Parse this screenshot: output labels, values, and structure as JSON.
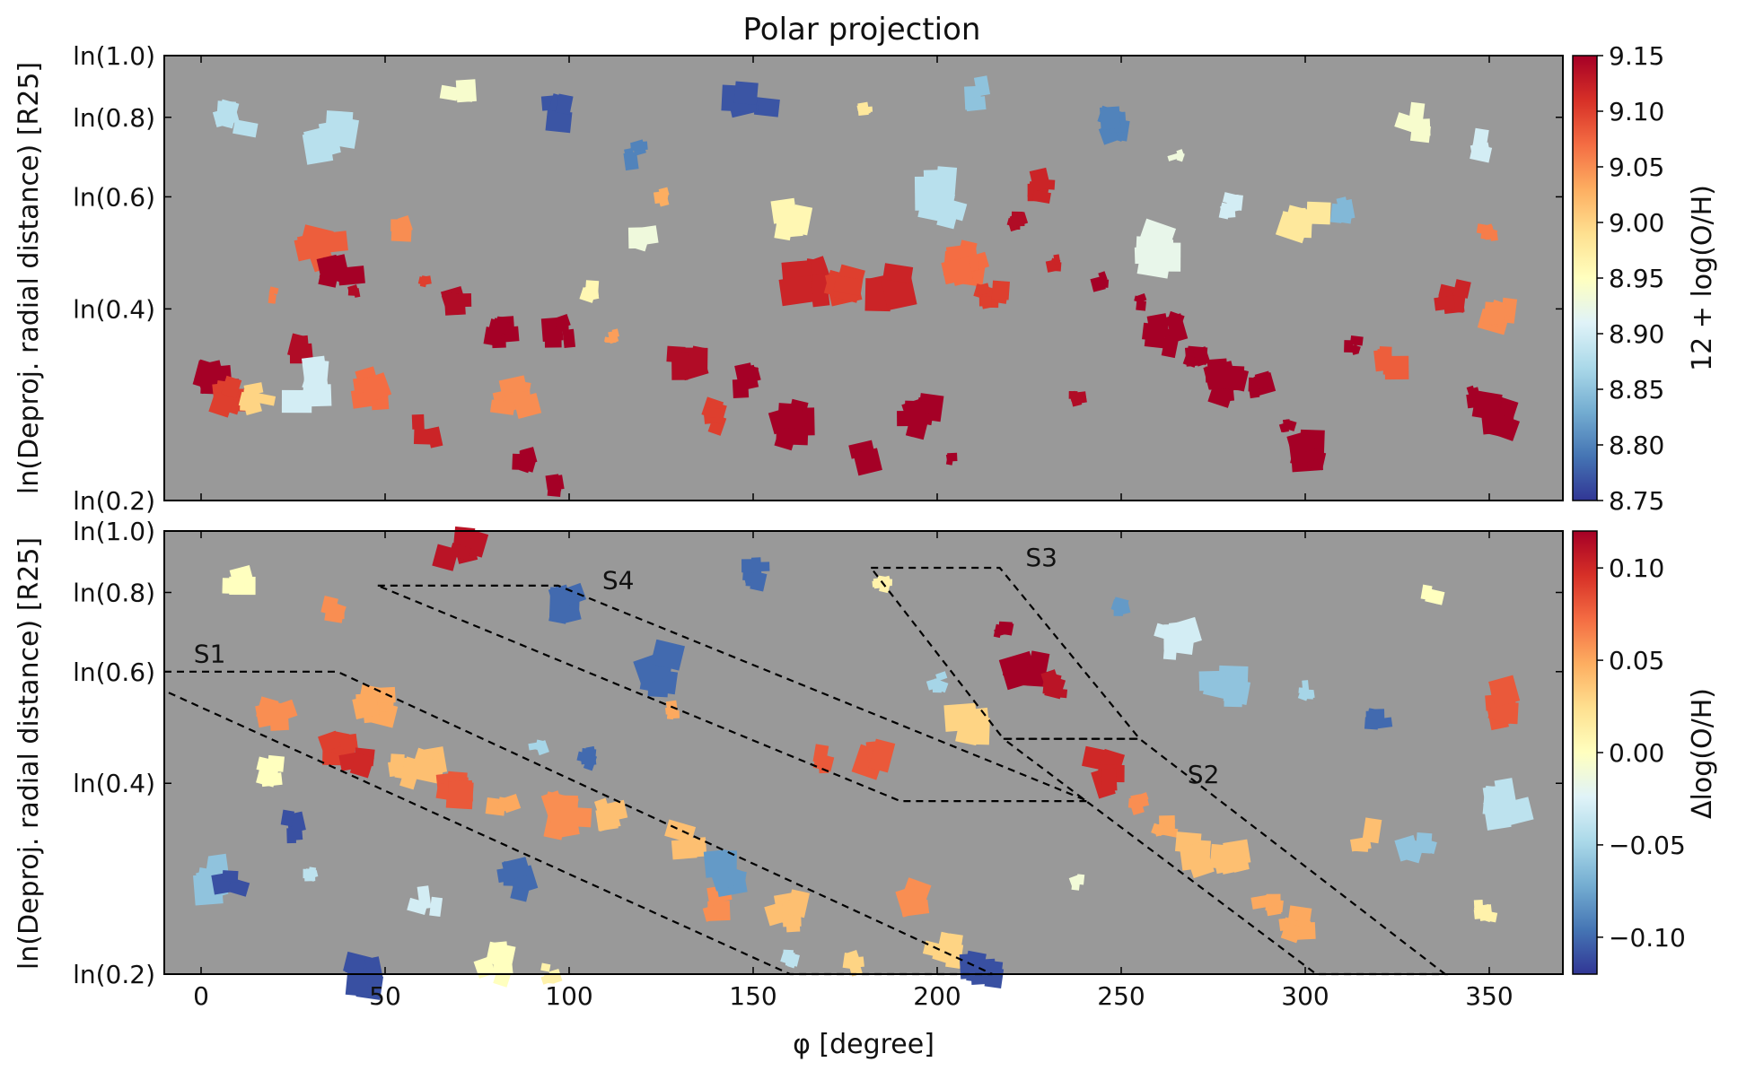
{
  "chart_data": [
    {
      "type": "scatter",
      "title": "Polar projection",
      "xlabel": "",
      "ylabel": "ln(Deproj. radial distance) [R25]",
      "xlim": [
        -10,
        370
      ],
      "ylim_radius": [
        0.2,
        1.0
      ],
      "y_ticks": [
        "ln(1.0)",
        "ln(0.8)",
        "ln(0.6)",
        "ln(0.4)",
        "ln(0.2)"
      ],
      "y_tick_values": [
        1.0,
        0.8,
        0.6,
        0.4,
        0.2
      ],
      "background_color": "#999999",
      "colorbar": {
        "label": "12 + log(O/H)",
        "min": 8.75,
        "max": 9.15,
        "ticks": [
          "9.15",
          "9.10",
          "9.05",
          "9.00",
          "8.95",
          "8.90",
          "8.85",
          "8.80",
          "8.75"
        ],
        "tick_values": [
          9.15,
          9.1,
          9.05,
          9.0,
          8.95,
          8.9,
          8.85,
          8.8,
          8.75
        ],
        "colors": [
          "#313695",
          "#4575b4",
          "#74add1",
          "#abd9e9",
          "#e0f3f8",
          "#ffffbf",
          "#fee090",
          "#fdae61",
          "#f46d43",
          "#d73027",
          "#a50026"
        ]
      },
      "points": [
        {
          "phi": 3,
          "r": 0.3,
          "v": 9.15
        },
        {
          "phi": 8,
          "r": 0.29,
          "v": 9.1
        },
        {
          "phi": 15,
          "r": 0.29,
          "v": 9.0
        },
        {
          "phi": 20,
          "r": 0.42,
          "v": 9.06
        },
        {
          "phi": 25,
          "r": 0.35,
          "v": 9.14
        },
        {
          "phi": 30,
          "r": 0.3,
          "v": 8.9
        },
        {
          "phi": 33,
          "r": 0.51,
          "v": 9.08
        },
        {
          "phi": 38,
          "r": 0.46,
          "v": 9.15
        },
        {
          "phi": 42,
          "r": 0.43,
          "v": 9.14
        },
        {
          "phi": 47,
          "r": 0.3,
          "v": 9.07
        },
        {
          "phi": 55,
          "r": 0.54,
          "v": 9.05
        },
        {
          "phi": 60,
          "r": 0.45,
          "v": 9.1
        },
        {
          "phi": 62,
          "r": 0.26,
          "v": 9.12
        },
        {
          "phi": 70,
          "r": 0.41,
          "v": 9.14
        },
        {
          "phi": 82,
          "r": 0.37,
          "v": 9.15
        },
        {
          "phi": 85,
          "r": 0.29,
          "v": 9.05
        },
        {
          "phi": 88,
          "r": 0.23,
          "v": 9.15
        },
        {
          "phi": 95,
          "r": 0.21,
          "v": 9.15
        },
        {
          "phi": 98,
          "r": 0.37,
          "v": 9.15
        },
        {
          "phi": 105,
          "r": 0.43,
          "v": 8.96
        },
        {
          "phi": 112,
          "r": 0.36,
          "v": 9.04
        },
        {
          "phi": 118,
          "r": 0.7,
          "v": 8.8
        },
        {
          "phi": 125,
          "r": 0.6,
          "v": 9.03
        },
        {
          "phi": 132,
          "r": 0.33,
          "v": 9.14
        },
        {
          "phi": 140,
          "r": 0.27,
          "v": 9.1
        },
        {
          "phi": 148,
          "r": 0.31,
          "v": 9.15
        },
        {
          "phi": 160,
          "r": 0.26,
          "v": 9.15
        },
        {
          "phi": 165,
          "r": 0.44,
          "v": 9.12
        },
        {
          "phi": 172,
          "r": 0.44,
          "v": 9.1
        },
        {
          "phi": 178,
          "r": 0.23,
          "v": 9.15
        },
        {
          "phi": 185,
          "r": 0.44,
          "v": 9.12
        },
        {
          "phi": 195,
          "r": 0.27,
          "v": 9.15
        },
        {
          "phi": 203,
          "r": 0.23,
          "v": 9.15
        },
        {
          "phi": 208,
          "r": 0.48,
          "v": 9.07
        },
        {
          "phi": 215,
          "r": 0.42,
          "v": 9.1
        },
        {
          "phi": 222,
          "r": 0.55,
          "v": 9.14
        },
        {
          "phi": 228,
          "r": 0.62,
          "v": 9.12
        },
        {
          "phi": 232,
          "r": 0.47,
          "v": 9.12
        },
        {
          "phi": 238,
          "r": 0.29,
          "v": 9.14
        },
        {
          "phi": 245,
          "r": 0.44,
          "v": 9.15
        },
        {
          "phi": 255,
          "r": 0.41,
          "v": 9.15
        },
        {
          "phi": 262,
          "r": 0.37,
          "v": 9.15
        },
        {
          "phi": 270,
          "r": 0.34,
          "v": 9.15
        },
        {
          "phi": 280,
          "r": 0.31,
          "v": 9.15
        },
        {
          "phi": 288,
          "r": 0.3,
          "v": 9.15
        },
        {
          "phi": 295,
          "r": 0.26,
          "v": 9.15
        },
        {
          "phi": 300,
          "r": 0.24,
          "v": 9.15
        },
        {
          "phi": 313,
          "r": 0.35,
          "v": 9.15
        },
        {
          "phi": 322,
          "r": 0.33,
          "v": 9.08
        },
        {
          "phi": 345,
          "r": 0.29,
          "v": 9.15
        },
        {
          "phi": 352,
          "r": 0.27,
          "v": 9.15
        },
        {
          "phi": 355,
          "r": 0.39,
          "v": 9.05
        },
        {
          "phi": 350,
          "r": 0.53,
          "v": 9.06
        },
        {
          "phi": 340,
          "r": 0.42,
          "v": 9.12
        },
        {
          "phi": 10,
          "r": 0.8,
          "v": 8.88
        },
        {
          "phi": 35,
          "r": 0.76,
          "v": 8.88
        },
        {
          "phi": 70,
          "r": 0.85,
          "v": 8.94
        },
        {
          "phi": 95,
          "r": 0.82,
          "v": 8.77
        },
        {
          "phi": 150,
          "r": 0.86,
          "v": 8.77
        },
        {
          "phi": 180,
          "r": 0.82,
          "v": 8.98
        },
        {
          "phi": 210,
          "r": 0.86,
          "v": 8.85
        },
        {
          "phi": 248,
          "r": 0.78,
          "v": 8.8
        },
        {
          "phi": 265,
          "r": 0.7,
          "v": 8.93
        },
        {
          "phi": 280,
          "r": 0.58,
          "v": 8.9
        },
        {
          "phi": 310,
          "r": 0.58,
          "v": 8.84
        },
        {
          "phi": 330,
          "r": 0.78,
          "v": 8.94
        },
        {
          "phi": 350,
          "r": 0.72,
          "v": 8.9
        },
        {
          "phi": 120,
          "r": 0.52,
          "v": 8.93
        },
        {
          "phi": 160,
          "r": 0.55,
          "v": 8.96
        },
        {
          "phi": 200,
          "r": 0.6,
          "v": 8.88
        },
        {
          "phi": 260,
          "r": 0.5,
          "v": 8.92
        },
        {
          "phi": 300,
          "r": 0.55,
          "v": 8.98
        }
      ]
    },
    {
      "type": "scatter",
      "title": "",
      "xlabel": "φ [degree]",
      "ylabel": "ln(Deproj. radial distance) [R25]",
      "xlim": [
        -10,
        370
      ],
      "x_ticks": [
        "0",
        "50",
        "100",
        "150",
        "200",
        "250",
        "300",
        "350"
      ],
      "x_tick_values": [
        0,
        50,
        100,
        150,
        200,
        250,
        300,
        350
      ],
      "ylim_radius": [
        0.2,
        1.0
      ],
      "y_ticks": [
        "ln(1.0)",
        "ln(0.8)",
        "ln(0.6)",
        "ln(0.4)",
        "ln(0.2)"
      ],
      "y_tick_values": [
        1.0,
        0.8,
        0.6,
        0.4,
        0.2
      ],
      "background_color": "#999999",
      "colorbar": {
        "label": "Δlog(O/H)",
        "min": -0.12,
        "max": 0.12,
        "ticks": [
          "0.10",
          "0.05",
          "0.00",
          "−0.05",
          "−0.10"
        ],
        "tick_values": [
          0.1,
          0.05,
          0.0,
          -0.05,
          -0.1
        ],
        "colors": [
          "#313695",
          "#4575b4",
          "#74add1",
          "#abd9e9",
          "#e0f3f8",
          "#ffffbf",
          "#fee090",
          "#fdae61",
          "#f46d43",
          "#d73027",
          "#a50026"
        ]
      },
      "spiral_arms": [
        {
          "label": "S1",
          "label_phi": -2,
          "label_r": 0.62,
          "path": [
            [
              -10,
              0.6
            ],
            [
              37,
              0.6
            ],
            [
              215,
              0.2
            ],
            [
              160,
              0.2
            ],
            [
              -10,
              0.56
            ]
          ]
        },
        {
          "label": "S2",
          "label_phi": 268,
          "label_r": 0.4,
          "path": [
            [
              218,
              0.47
            ],
            [
              255,
              0.47
            ],
            [
              338,
              0.2
            ],
            [
              303,
              0.2
            ],
            [
              218,
              0.47
            ]
          ]
        },
        {
          "label": "S3",
          "label_phi": 224,
          "label_r": 0.88,
          "path": [
            [
              182,
              0.875
            ],
            [
              217,
              0.875
            ],
            [
              255,
              0.47
            ],
            [
              218,
              0.47
            ],
            [
              182,
              0.875
            ]
          ]
        },
        {
          "label": "S4",
          "label_phi": 109,
          "label_r": 0.81,
          "path": [
            [
              48,
              0.82
            ],
            [
              97,
              0.82
            ],
            [
              241,
              0.375
            ],
            [
              190,
              0.375
            ],
            [
              48,
              0.82
            ]
          ]
        }
      ],
      "points": [
        {
          "phi": 3,
          "r": 0.28,
          "v": -0.06
        },
        {
          "phi": 8,
          "r": 0.28,
          "v": -0.11
        },
        {
          "phi": 18,
          "r": 0.42,
          "v": 0.0
        },
        {
          "phi": 20,
          "r": 0.52,
          "v": 0.06
        },
        {
          "phi": 25,
          "r": 0.34,
          "v": -0.11
        },
        {
          "phi": 30,
          "r": 0.29,
          "v": -0.04
        },
        {
          "phi": 38,
          "r": 0.46,
          "v": 0.09
        },
        {
          "phi": 42,
          "r": 0.43,
          "v": 0.1
        },
        {
          "phi": 44,
          "r": 0.2,
          "v": -0.11
        },
        {
          "phi": 48,
          "r": 0.53,
          "v": 0.05
        },
        {
          "phi": 55,
          "r": 0.42,
          "v": 0.04
        },
        {
          "phi": 60,
          "r": 0.44,
          "v": 0.04
        },
        {
          "phi": 62,
          "r": 0.26,
          "v": -0.03
        },
        {
          "phi": 68,
          "r": 0.4,
          "v": 0.08
        },
        {
          "phi": 80,
          "r": 0.21,
          "v": 0.0
        },
        {
          "phi": 82,
          "r": 0.37,
          "v": 0.05
        },
        {
          "phi": 85,
          "r": 0.28,
          "v": -0.1
        },
        {
          "phi": 92,
          "r": 0.45,
          "v": -0.05
        },
        {
          "phi": 95,
          "r": 0.2,
          "v": 0.01
        },
        {
          "phi": 100,
          "r": 0.36,
          "v": 0.06
        },
        {
          "phi": 105,
          "r": 0.44,
          "v": -0.1
        },
        {
          "phi": 112,
          "r": 0.36,
          "v": 0.04
        },
        {
          "phi": 125,
          "r": 0.61,
          "v": -0.1
        },
        {
          "phi": 128,
          "r": 0.52,
          "v": 0.05
        },
        {
          "phi": 133,
          "r": 0.33,
          "v": 0.04
        },
        {
          "phi": 140,
          "r": 0.26,
          "v": 0.06
        },
        {
          "phi": 144,
          "r": 0.29,
          "v": -0.08
        },
        {
          "phi": 160,
          "r": 0.25,
          "v": 0.04
        },
        {
          "phi": 160,
          "r": 0.21,
          "v": -0.04
        },
        {
          "phi": 168,
          "r": 0.44,
          "v": 0.08
        },
        {
          "phi": 178,
          "r": 0.21,
          "v": 0.03
        },
        {
          "phi": 182,
          "r": 0.44,
          "v": 0.08
        },
        {
          "phi": 195,
          "r": 0.26,
          "v": 0.06
        },
        {
          "phi": 202,
          "r": 0.22,
          "v": 0.03
        },
        {
          "phi": 213,
          "r": 0.2,
          "v": -0.11
        },
        {
          "phi": 218,
          "r": 0.7,
          "v": 0.12
        },
        {
          "phi": 225,
          "r": 0.62,
          "v": 0.12
        },
        {
          "phi": 232,
          "r": 0.57,
          "v": 0.11
        },
        {
          "phi": 238,
          "r": 0.28,
          "v": -0.01
        },
        {
          "phi": 245,
          "r": 0.42,
          "v": 0.1
        },
        {
          "phi": 255,
          "r": 0.37,
          "v": 0.06
        },
        {
          "phi": 262,
          "r": 0.34,
          "v": 0.05
        },
        {
          "phi": 270,
          "r": 0.31,
          "v": 0.04
        },
        {
          "phi": 280,
          "r": 0.3,
          "v": 0.04
        },
        {
          "phi": 290,
          "r": 0.26,
          "v": 0.05
        },
        {
          "phi": 298,
          "r": 0.24,
          "v": 0.05
        },
        {
          "phi": 315,
          "r": 0.33,
          "v": 0.04
        },
        {
          "phi": 330,
          "r": 0.31,
          "v": -0.06
        },
        {
          "phi": 349,
          "r": 0.25,
          "v": 0.01
        },
        {
          "phi": 355,
          "r": 0.37,
          "v": -0.04
        },
        {
          "phi": 352,
          "r": 0.53,
          "v": 0.08
        },
        {
          "phi": 320,
          "r": 0.5,
          "v": -0.1
        },
        {
          "phi": 300,
          "r": 0.56,
          "v": -0.05
        },
        {
          "phi": 278,
          "r": 0.56,
          "v": -0.06
        },
        {
          "phi": 250,
          "r": 0.76,
          "v": -0.08
        },
        {
          "phi": 185,
          "r": 0.82,
          "v": 0.01
        },
        {
          "phi": 150,
          "r": 0.86,
          "v": -0.1
        },
        {
          "phi": 70,
          "r": 0.94,
          "v": 0.11
        },
        {
          "phi": 100,
          "r": 0.78,
          "v": -0.1
        },
        {
          "phi": 35,
          "r": 0.75,
          "v": 0.06
        },
        {
          "phi": 12,
          "r": 0.82,
          "v": 0.0
        },
        {
          "phi": 200,
          "r": 0.58,
          "v": -0.05
        },
        {
          "phi": 210,
          "r": 0.5,
          "v": 0.03
        },
        {
          "phi": 265,
          "r": 0.68,
          "v": -0.03
        },
        {
          "phi": 335,
          "r": 0.78,
          "v": 0.0
        }
      ]
    }
  ]
}
